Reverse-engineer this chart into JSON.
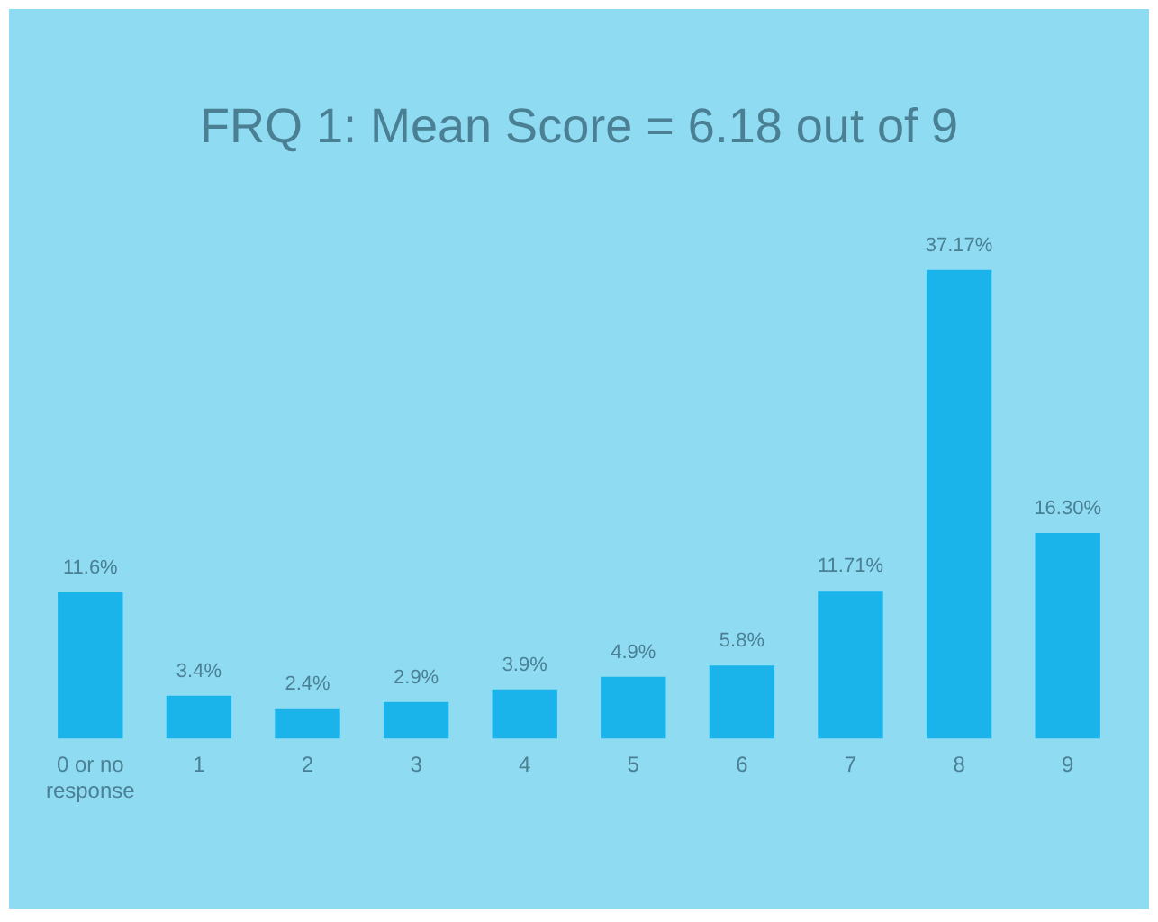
{
  "chart_data": {
    "type": "bar",
    "title": "FRQ 1:  Mean Score = 6.18 out of 9",
    "categories": [
      "0 or no response",
      "1",
      "2",
      "3",
      "4",
      "5",
      "6",
      "7",
      "8",
      "9"
    ],
    "values": [
      11.6,
      3.4,
      2.4,
      2.9,
      3.9,
      4.9,
      5.8,
      11.71,
      37.17,
      16.3
    ],
    "value_labels": [
      "11.6%",
      "3.4%",
      "2.4%",
      "2.9%",
      "3.9%",
      "4.9%",
      "5.8%",
      "11.71%",
      "37.17%",
      "16.30%"
    ],
    "color": "#1ab4ea",
    "grid": false,
    "legend": false
  }
}
